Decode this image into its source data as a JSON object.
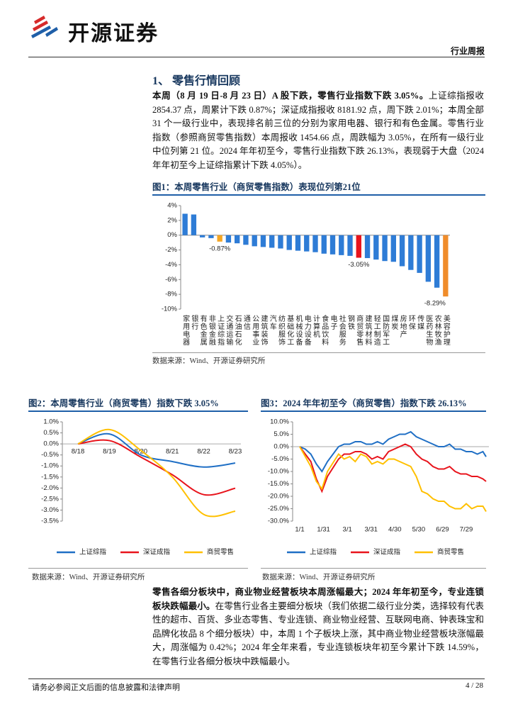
{
  "header": {
    "logo": "开源证券",
    "tag": "行业周报"
  },
  "section": {
    "title": "1、 零售行情回顾"
  },
  "paragraphs": [
    {
      "bold": "本周（8 月 19 日-8 月 23 日）A 股下跌，零售行业指数下跌 3.05%。",
      "text": "上证综指报收 2854.37 点，周累计下跌 0.87%；深证成指报收 8181.92 点，周下跌 2.01%；本周全部 31 个一级行业中，表现排名前三位的分别为家用电器、银行和有色金属。零售行业指数（参照商贸零售指数）本周报收 1454.66 点，周跌幅为 3.05%，在所有一级行业中位列第 21 位。2024 年年初至今，零售行业指数下跌 26.13%，表现弱于大盘（2024 年年初至今上证综指累计下跌 4.05%）。"
    },
    {
      "bold": "零售各细分板块中，商业物业经营板块本周涨幅最大；2024 年年初至今，专业连锁板块跌幅最小。",
      "text": "在零售行业各主要细分板块（我们依据二级行业分类，选择较有代表性的超市、百货、多业态零售、专业连锁、商业物业经营、互联网电商、钟表珠宝和品牌化妆品 8 个细分板块）中，本周 1 个子板块上涨，其中商业物业经营板块涨幅最大，周涨幅为 0.42%；2024 年全年来看，专业连锁板块年初至今累计下跌 14.59%，在零售行业各细分板块中跌幅最小。"
    }
  ],
  "chart_data": [
    {
      "type": "bar",
      "title": "图1：本周零售行业（商贸零售指数）表现位列第21位",
      "categories": [
        "家用电器",
        "银行",
        "有色金属",
        "非银金融",
        "上证综指",
        "交通运输",
        "石油石化",
        "通信",
        "公用事业",
        "建筑装饰",
        "汽车",
        "纺织服饰",
        "基础化工",
        "机械设备",
        "电力设备",
        "计算机",
        "食品饮料",
        "电子",
        "社会服务",
        "钢铁",
        "商贸零售",
        "建筑材料",
        "轻工制造",
        "国防军工",
        "煤炭",
        "房地产",
        "环保",
        "传媒",
        "医药生物",
        "农林牧渔",
        "美容护理"
      ],
      "values": [
        2.9,
        2.8,
        -0.3,
        -0.4,
        -0.87,
        -1.0,
        -1.1,
        -1.3,
        -1.5,
        -1.6,
        -1.7,
        -1.8,
        -2.0,
        -2.1,
        -2.2,
        -2.3,
        -2.5,
        -2.6,
        -2.7,
        -2.8,
        -3.05,
        -3.1,
        -3.3,
        -3.5,
        -3.6,
        -4.2,
        -4.7,
        -5.1,
        -6.3,
        -7.1,
        -8.29
      ],
      "value_labels": [
        null,
        null,
        null,
        null,
        "-0.87%",
        null,
        null,
        null,
        null,
        null,
        null,
        null,
        null,
        null,
        null,
        null,
        null,
        null,
        null,
        null,
        "-3.05%",
        null,
        null,
        null,
        null,
        null,
        null,
        null,
        null,
        null,
        "-8.29%"
      ],
      "colors": [
        "#2e7cd6",
        "#2e7cd6",
        "#2e7cd6",
        "#2e7cd6",
        "#f5a623",
        "#2e7cd6",
        "#2e7cd6",
        "#2e7cd6",
        "#2e7cd6",
        "#2e7cd6",
        "#2e7cd6",
        "#2e7cd6",
        "#2e7cd6",
        "#2e7cd6",
        "#2e7cd6",
        "#2e7cd6",
        "#2e7cd6",
        "#2e7cd6",
        "#2e7cd6",
        "#2e7cd6",
        "#e8141c",
        "#2e7cd6",
        "#2e7cd6",
        "#2e7cd6",
        "#2e7cd6",
        "#2e7cd6",
        "#2e7cd6",
        "#2e7cd6",
        "#2e7cd6",
        "#2e7cd6",
        "#f08c2a"
      ],
      "ylim": [
        -10,
        4
      ],
      "yticks": [
        {
          "value": 4,
          "label": "4%"
        },
        {
          "value": 2,
          "label": "2%"
        },
        {
          "value": 0,
          "label": "0%"
        },
        {
          "value": -2,
          "label": "-2%"
        },
        {
          "value": -4,
          "label": "-4%"
        },
        {
          "value": -6,
          "label": "-6%"
        },
        {
          "value": -8,
          "label": "-8%"
        },
        {
          "value": -10,
          "label": "-10%"
        }
      ],
      "source": "数据来源：Wind、开源证券研究所"
    },
    {
      "type": "line",
      "title": "图2：本周零售行业（商贸零售）指数下跌 3.05%",
      "categories": [
        "8/18",
        "8/19",
        "8/20",
        "8/21",
        "8/22",
        "8/23"
      ],
      "series": [
        {
          "name": "上证综指",
          "color": "#1f6fc5",
          "values": [
            0,
            0.45,
            -0.5,
            -0.8,
            -1.05,
            -0.87
          ]
        },
        {
          "name": "深证成指",
          "color": "#e8141c",
          "values": [
            0,
            0.15,
            -0.6,
            -1.4,
            -2.3,
            -2.01
          ]
        },
        {
          "name": "商贸零售",
          "color": "#ffc000",
          "values": [
            0,
            0.65,
            -0.3,
            -1.5,
            -3.2,
            -3.05
          ]
        }
      ],
      "ylim": [
        -3.5,
        1
      ],
      "yticks": [
        {
          "value": 1,
          "label": "1.0%"
        },
        {
          "value": 0.5,
          "label": "0.5%"
        },
        {
          "value": 0,
          "label": "0.0%"
        },
        {
          "value": -0.5,
          "label": "-0.5%"
        },
        {
          "value": -1,
          "label": "-1.0%"
        },
        {
          "value": -1.5,
          "label": "-1.5%"
        },
        {
          "value": -2,
          "label": "-2.0%"
        },
        {
          "value": -2.5,
          "label": "-2.5%"
        },
        {
          "value": -3,
          "label": "-3.0%"
        },
        {
          "value": -3.5,
          "label": "-3.5%"
        }
      ],
      "source": "数据来源：Wind、开源证券研究所"
    },
    {
      "type": "line",
      "title": "图3：2024 年年初至今（商贸零售）指数下跌 26.13%",
      "x": [
        "1/1",
        "1/8",
        "1/15",
        "1/22",
        "1/29",
        "2/5",
        "2/19",
        "2/26",
        "3/4",
        "3/11",
        "3/18",
        "3/25",
        "4/1",
        "4/8",
        "4/15",
        "4/22",
        "4/29",
        "5/6",
        "5/13",
        "5/20",
        "5/27",
        "6/3",
        "6/10",
        "6/17",
        "6/24",
        "7/1",
        "7/8",
        "7/15",
        "7/22",
        "7/29",
        "8/5",
        "8/12",
        "8/19",
        "8/23"
      ],
      "xticks": [
        "1/1",
        "1/31",
        "3/1",
        "3/31",
        "4/30",
        "5/30",
        "6/29",
        "7/29"
      ],
      "series": [
        {
          "name": "上证综指",
          "color": "#1f6fc5",
          "values": [
            0,
            -1,
            -3,
            -7,
            -10,
            -6,
            0,
            1,
            1,
            2,
            2,
            1,
            1,
            2,
            1,
            3,
            4,
            5,
            5,
            6,
            4,
            3,
            2,
            1,
            0,
            0,
            1,
            -1,
            -1,
            -2,
            -2,
            -3,
            -2,
            -4.05
          ]
        },
        {
          "name": "深证成指",
          "color": "#e8141c",
          "values": [
            0,
            -3,
            -6,
            -13,
            -18,
            -12,
            -5,
            -3,
            -3,
            -2,
            -2,
            -3,
            -5,
            -4,
            -5,
            -2,
            -1,
            0,
            1,
            0,
            -3,
            -5,
            -6,
            -8,
            -9,
            -9,
            -8,
            -10,
            -11,
            -11,
            -12,
            -12,
            -13,
            -14
          ]
        },
        {
          "name": "商贸零售",
          "color": "#ffc000",
          "values": [
            0,
            -4,
            -8,
            -14,
            -17,
            -10,
            -3,
            -5,
            -4,
            -6,
            -3,
            -4,
            -7,
            -6,
            -7,
            -5,
            -5,
            -6,
            -7,
            -8,
            -12,
            -18,
            -19,
            -21,
            -22,
            -22,
            -24,
            -25,
            -25,
            -23,
            -25,
            -24,
            -24,
            -26.13
          ]
        }
      ],
      "ylim": [
        -30,
        10
      ],
      "yticks": [
        {
          "value": 10,
          "label": "10.0%"
        },
        {
          "value": 5,
          "label": "5.0%"
        },
        {
          "value": 0,
          "label": "0.0%"
        },
        {
          "value": -5,
          "label": "-5.0%"
        },
        {
          "value": -10,
          "label": "-10.0%"
        },
        {
          "value": -15,
          "label": "-15.0%"
        },
        {
          "value": -20,
          "label": "-20.0%"
        },
        {
          "value": -25,
          "label": "-25.0%"
        },
        {
          "value": -30,
          "label": "-30.0%"
        }
      ],
      "source": "数据来源：Wind、开源证券研究所"
    }
  ],
  "footer": {
    "disclaimer": "请务必参阅正文后面的信息披露和法律声明",
    "page": "4 / 28"
  }
}
